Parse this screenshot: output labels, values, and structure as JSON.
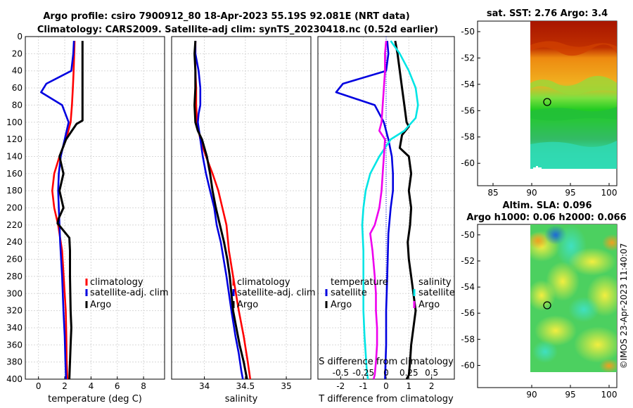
{
  "header": {
    "title_line1": "Argo profile: csiro 7900912_80 18-Apr-2023 55.19S 92.081E (NRT data)",
    "title_line2": "Climatology: CARS2009. Satellite-adj clim: synTS_20230418.nc (0.52d earlier)"
  },
  "colors": {
    "climatology": "#ff0000",
    "satellite": "#0000e0",
    "argo": "#000000",
    "sal_sat": "#00e5e5",
    "sal_argo": "#ee00ee"
  },
  "chart_data": [
    {
      "id": "temperature",
      "type": "line",
      "xlabel": "temperature (deg C)",
      "ylabel": "",
      "xlim": [
        -1,
        9.6
      ],
      "ylim": [
        0,
        400
      ],
      "xticks": [
        "0",
        "2",
        "4",
        "6",
        "8"
      ],
      "xtick_values": [
        0,
        2,
        4,
        6,
        8
      ],
      "yticks": [
        "0",
        "20",
        "40",
        "60",
        "80",
        "100",
        "120",
        "140",
        "160",
        "180",
        "200",
        "220",
        "240",
        "260",
        "280",
        "300",
        "320",
        "340",
        "360",
        "380",
        "400"
      ],
      "ytick_values": [
        0,
        20,
        40,
        60,
        80,
        100,
        120,
        140,
        160,
        180,
        200,
        220,
        240,
        260,
        280,
        300,
        320,
        340,
        360,
        380,
        400
      ],
      "legend": [
        "climatology",
        "satellite-adj. clim",
        "Argo"
      ],
      "series": [
        {
          "name": "climatology",
          "color_key": "climatology",
          "x": [
            2.75,
            2.72,
            2.68,
            2.62,
            2.55,
            2.45,
            2.1,
            1.6,
            1.2,
            1.05,
            1.2,
            1.5,
            1.8,
            2.0,
            2.08,
            2.12,
            2.15,
            2.2
          ],
          "y": [
            5,
            20,
            40,
            60,
            80,
            100,
            120,
            140,
            160,
            180,
            200,
            220,
            250,
            300,
            320,
            350,
            380,
            400
          ]
        },
        {
          "name": "satellite-adj. clim",
          "color_key": "satellite",
          "x": [
            2.7,
            2.65,
            2.5,
            0.6,
            0.2,
            1.8,
            2.3,
            2.0,
            1.7,
            1.55,
            1.5,
            1.55,
            1.6,
            1.65,
            1.8,
            1.9,
            2.0,
            2.05,
            2.1
          ],
          "y": [
            5,
            20,
            40,
            55,
            65,
            80,
            100,
            120,
            140,
            160,
            180,
            200,
            220,
            240,
            280,
            320,
            350,
            380,
            400
          ]
        },
        {
          "name": "Argo",
          "color_key": "argo",
          "x": [
            3.35,
            3.35,
            3.35,
            3.35,
            3.35,
            3.35,
            2.9,
            2.1,
            1.6,
            1.9,
            1.6,
            1.9,
            1.55,
            1.45,
            2.35,
            2.4,
            2.4,
            2.45,
            2.5,
            2.45,
            2.4,
            2.35
          ],
          "y": [
            5,
            20,
            40,
            60,
            80,
            98,
            102,
            120,
            140,
            160,
            180,
            200,
            212,
            218,
            235,
            250,
            280,
            320,
            340,
            360,
            380,
            400
          ]
        }
      ]
    },
    {
      "id": "salinity",
      "type": "line",
      "xlabel": "salinity",
      "ylabel": "",
      "xlim": [
        33.6,
        35.3
      ],
      "ylim": [
        0,
        400
      ],
      "xticks": [
        "34",
        "34.5",
        "35"
      ],
      "xtick_values": [
        34,
        34.5,
        35
      ],
      "legend": [
        "climatology",
        "satellite-adj. clim",
        "Argo"
      ],
      "series": [
        {
          "name": "climatology",
          "color_key": "climatology",
          "x": [
            33.89,
            33.89,
            33.89,
            33.9,
            33.9,
            33.91,
            33.95,
            34.02,
            34.1,
            34.17,
            34.22,
            34.27,
            34.3,
            34.35,
            34.42,
            34.48,
            34.53,
            34.56
          ],
          "y": [
            5,
            20,
            40,
            60,
            80,
            100,
            120,
            140,
            160,
            180,
            200,
            220,
            250,
            280,
            320,
            350,
            380,
            400
          ]
        },
        {
          "name": "satellite-adj. clim",
          "color_key": "satellite",
          "x": [
            33.89,
            33.89,
            33.93,
            33.95,
            33.95,
            33.93,
            33.92,
            33.95,
            33.98,
            34.02,
            34.07,
            34.12,
            34.15,
            34.2,
            34.27,
            34.33,
            34.38,
            34.42,
            34.45,
            34.47
          ],
          "y": [
            5,
            20,
            40,
            60,
            80,
            90,
            100,
            120,
            140,
            160,
            180,
            200,
            220,
            240,
            280,
            320,
            350,
            370,
            390,
            400
          ]
        },
        {
          "name": "Argo",
          "color_key": "argo",
          "x": [
            33.89,
            33.88,
            33.89,
            33.89,
            33.88,
            33.89,
            33.92,
            33.97,
            34.03,
            34.07,
            34.1,
            34.14,
            34.19,
            34.24,
            34.28,
            34.31,
            34.33,
            34.35,
            34.39,
            34.43,
            34.48,
            34.52
          ],
          "y": [
            5,
            20,
            40,
            60,
            80,
            100,
            110,
            120,
            140,
            160,
            180,
            200,
            220,
            240,
            260,
            280,
            300,
            320,
            340,
            360,
            380,
            400
          ]
        }
      ]
    },
    {
      "id": "difference",
      "type": "line",
      "xlabel": "T difference from climatology",
      "top_label": "S difference from climatology",
      "xlim": [
        -3,
        3
      ],
      "ylim": [
        0,
        400
      ],
      "xticks": [
        "-2",
        "-1",
        "0",
        "1",
        "2"
      ],
      "xtick_values": [
        -2,
        -1,
        0,
        1,
        2
      ],
      "sticks": [
        "-0.5",
        "-0.25",
        "0",
        "0.25",
        "0.5"
      ],
      "stick_values": [
        -2,
        -1,
        0,
        1,
        2
      ],
      "legend_temperature_title": "temperature",
      "legend_salinity_title": "salinity",
      "legend_temperature": [
        "satellite",
        "Argo"
      ],
      "legend_salinity": [
        "satellite",
        "Argo"
      ],
      "series": [
        {
          "name": "T satellite",
          "color_key": "satellite",
          "x": [
            0.05,
            0.1,
            0.0,
            -1.9,
            -2.2,
            -0.5,
            -0.1,
            0.1,
            0.25,
            0.3,
            0.3,
            0.2,
            0.1,
            0.05,
            0.0,
            0.0,
            -0.05
          ],
          "y": [
            5,
            20,
            40,
            55,
            65,
            80,
            100,
            120,
            140,
            160,
            180,
            200,
            230,
            280,
            320,
            360,
            400
          ]
        },
        {
          "name": "T Argo",
          "color_key": "argo",
          "x": [
            0.4,
            0.5,
            0.6,
            0.7,
            0.8,
            0.9,
            1.0,
            0.7,
            0.6,
            1.0,
            1.1,
            1.0,
            1.1,
            1.05,
            0.95,
            1.0,
            1.1,
            1.2,
            1.3,
            1.2,
            1.1,
            1.05,
            1.0,
            0.9
          ],
          "y": [
            5,
            20,
            40,
            60,
            80,
            100,
            105,
            115,
            130,
            140,
            160,
            180,
            200,
            220,
            240,
            260,
            280,
            300,
            320,
            340,
            360,
            380,
            395,
            400
          ]
        },
        {
          "name": "S satellite",
          "color_key": "sal_sat",
          "x": [
            0.2,
            0.6,
            1.0,
            1.3,
            1.4,
            1.3,
            0.8,
            0.2,
            -0.3,
            -0.7,
            -0.9,
            -1.0,
            -1.05,
            -1.0,
            -1.0,
            -1.0,
            -0.95,
            -0.9,
            -0.85,
            -0.8
          ],
          "y": [
            5,
            20,
            40,
            60,
            80,
            95,
            110,
            120,
            140,
            160,
            180,
            200,
            220,
            250,
            280,
            320,
            350,
            370,
            390,
            400
          ]
        },
        {
          "name": "S Argo",
          "color_key": "sal_argo",
          "x": [
            0.0,
            -0.05,
            -0.05,
            -0.1,
            -0.15,
            -0.2,
            -0.3,
            -0.05,
            -0.1,
            -0.15,
            -0.2,
            -0.3,
            -0.5,
            -0.7,
            -0.6,
            -0.5,
            -0.45,
            -0.45,
            -0.4,
            -0.4,
            -0.45,
            -0.5,
            -0.55
          ],
          "y": [
            5,
            20,
            40,
            60,
            80,
            100,
            110,
            120,
            140,
            160,
            180,
            200,
            220,
            230,
            250,
            280,
            300,
            320,
            340,
            360,
            380,
            395,
            400
          ]
        }
      ]
    }
  ],
  "maps": {
    "sst": {
      "title": "sat. SST: 2.76 Argo: 3.4",
      "xticks": [
        "85",
        "90",
        "95",
        "100"
      ],
      "xtick_values": [
        85,
        90,
        95,
        100
      ],
      "yticks": [
        "-50",
        "-52",
        "-54",
        "-56",
        "-58",
        "-60"
      ],
      "ytick_values": [
        -50,
        -52,
        -54,
        -56,
        -58,
        -60
      ],
      "xlim": [
        83,
        101
      ],
      "ylim": [
        -61.7,
        -49.2
      ],
      "marker": {
        "lon": 92.08,
        "lat": -55.19
      }
    },
    "sla": {
      "title_line1": "Altim. SLA: 0.096",
      "title_line2": "Argo h1000: 0.06 h2000: 0.066",
      "xticks": [
        "90",
        "95",
        "100"
      ],
      "xtick_values": [
        90,
        95,
        100
      ],
      "yticks": [
        "-50",
        "-52",
        "-54",
        "-56",
        "-58",
        "-60"
      ],
      "ytick_values": [
        -50,
        -52,
        -54,
        -56,
        -58,
        -60
      ],
      "xlim": [
        83,
        101
      ],
      "ylim": [
        -61.7,
        -49.2
      ],
      "marker": {
        "lon": 92.08,
        "lat": -55.19
      }
    }
  },
  "footer": {
    "credit": "©IMOS 23-Apr-2023 11:40:07"
  }
}
